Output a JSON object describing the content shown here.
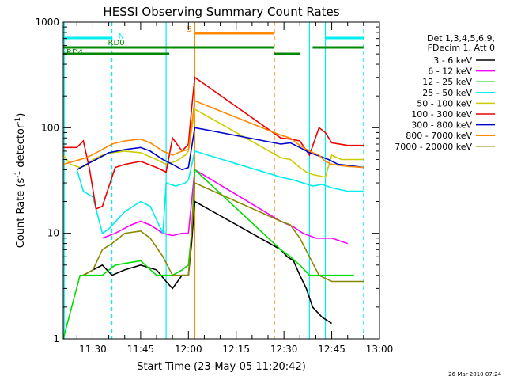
{
  "chart_data": {
    "type": "line",
    "title": "HESSI Observing Summary Count Rates",
    "xlabel": "Start Time (23-May-05 11:20:42)",
    "ylabel": "Count Rate (s^-1 detector^-1)",
    "ylabel_parts": {
      "main": "Count Rate (s",
      "sup1": "-1",
      "mid": " detector",
      "sup2": "-1",
      "end": ")"
    },
    "y_scale": "log",
    "ylim": [
      1,
      1000
    ],
    "xlim": [
      "11:20:42",
      "13:00:00"
    ],
    "x_ticks": [
      "11:30",
      "11:45",
      "12:00",
      "12:15",
      "12:30",
      "12:45",
      "13:00"
    ],
    "y_ticks": [
      "1",
      "10",
      "100",
      "1000"
    ],
    "grid": false,
    "legend_position": "right",
    "legend_header": [
      "Det 1,3,4,5,6,9,",
      "FDecim 1, Att 0"
    ],
    "footer": "26-Mar-2010 07:24",
    "colors": {
      "3 - 6 keV": "#000000",
      "6 - 12 keV": "#ff00ff",
      "12 - 25 keV": "#00dd00",
      "25 - 50 keV": "#00eeee",
      "50 - 100 keV": "#cccc00",
      "100 - 300 keV": "#ee0000",
      "300 - 800 keV": "#0000cc",
      "800 - 7000 keV": "#ff8800",
      "7000 - 20000 keV": "#888800"
    },
    "series": [
      {
        "name": "3 - 6 keV",
        "color": "#000000",
        "points": [
          [
            "11:27",
            4
          ],
          [
            "11:30",
            4.5
          ],
          [
            "11:33",
            5
          ],
          [
            "11:36",
            4
          ],
          [
            "11:40",
            4.5
          ],
          [
            "11:45",
            5
          ],
          [
            "11:50",
            4.5
          ],
          [
            "11:53",
            3.5
          ],
          [
            "11:55",
            3
          ],
          [
            "11:58",
            4
          ],
          [
            "12:00",
            4
          ],
          [
            "12:01",
            8
          ],
          [
            "12:02",
            20
          ],
          [
            "12:29",
            7
          ],
          [
            "12:31",
            6
          ],
          [
            "12:33",
            5.5
          ],
          [
            "12:35",
            4
          ],
          [
            "12:37",
            3
          ],
          [
            "12:39",
            2
          ],
          [
            "12:42",
            1.6
          ],
          [
            "12:45",
            1.4
          ]
        ]
      },
      {
        "name": "6 - 12 keV",
        "color": "#ff00ff",
        "points": [
          [
            "11:33",
            9
          ],
          [
            "11:37",
            10
          ],
          [
            "11:42",
            12
          ],
          [
            "11:45",
            13
          ],
          [
            "11:48",
            12
          ],
          [
            "11:52",
            10
          ],
          [
            "11:55",
            9.5
          ],
          [
            "11:58",
            10
          ],
          [
            "12:00",
            10
          ],
          [
            "12:02",
            40
          ],
          [
            "12:29",
            13
          ],
          [
            "12:33",
            11.5
          ],
          [
            "12:36",
            10
          ],
          [
            "12:40",
            9
          ],
          [
            "12:45",
            9
          ],
          [
            "12:50",
            8
          ]
        ]
      },
      {
        "name": "12 - 25 keV",
        "color": "#00dd00",
        "points": [
          [
            "11:20:42",
            1
          ],
          [
            "11:26",
            4
          ],
          [
            "11:30",
            4
          ],
          [
            "11:33",
            4
          ],
          [
            "11:37",
            5
          ],
          [
            "11:45",
            5.5
          ],
          [
            "11:50",
            4
          ],
          [
            "11:55",
            4
          ],
          [
            "11:58",
            4.5
          ],
          [
            "12:00",
            5
          ],
          [
            "12:01",
            10
          ],
          [
            "12:02",
            40
          ],
          [
            "12:29",
            7
          ],
          [
            "12:32",
            6
          ],
          [
            "12:35",
            5
          ],
          [
            "12:38",
            4
          ],
          [
            "12:42",
            4
          ],
          [
            "12:48",
            4
          ],
          [
            "12:52",
            4
          ]
        ]
      },
      {
        "name": "25 - 50 keV",
        "color": "#00eeee",
        "points": [
          [
            "11:25",
            40
          ],
          [
            "11:27",
            25
          ],
          [
            "11:30",
            22
          ],
          [
            "11:32",
            13
          ],
          [
            "11:33",
            10
          ],
          [
            "11:35",
            11
          ],
          [
            "11:40",
            16
          ],
          [
            "11:45",
            20
          ],
          [
            "11:48",
            18
          ],
          [
            "11:52",
            10
          ],
          [
            "11:53",
            30
          ],
          [
            "11:56",
            28
          ],
          [
            "11:59",
            30
          ],
          [
            "12:00",
            32
          ],
          [
            "12:02",
            60
          ],
          [
            "12:29",
            34
          ],
          [
            "12:33",
            32
          ],
          [
            "12:36",
            30
          ],
          [
            "12:39",
            28
          ],
          [
            "12:42",
            29
          ],
          [
            "12:45",
            27
          ],
          [
            "12:50",
            25
          ],
          [
            "12:55",
            25
          ]
        ]
      },
      {
        "name": "50 - 100 keV",
        "color": "#cccc00",
        "points": [
          [
            "11:20:42",
            55
          ],
          [
            "11:23",
            45
          ],
          [
            "11:26",
            42
          ],
          [
            "11:28",
            44
          ],
          [
            "11:30",
            50
          ],
          [
            "11:33",
            55
          ],
          [
            "11:36",
            58
          ],
          [
            "11:40",
            60
          ],
          [
            "11:45",
            58
          ],
          [
            "11:50",
            50
          ],
          [
            "11:53",
            45
          ],
          [
            "11:56",
            48
          ],
          [
            "11:59",
            55
          ],
          [
            "12:00",
            60
          ],
          [
            "12:02",
            150
          ],
          [
            "12:29",
            52
          ],
          [
            "12:32",
            50
          ],
          [
            "12:35",
            42
          ],
          [
            "12:37",
            38
          ],
          [
            "12:39",
            36
          ],
          [
            "12:41",
            35
          ],
          [
            "12:43",
            34
          ],
          [
            "12:45",
            55
          ],
          [
            "12:48",
            50
          ],
          [
            "12:52",
            50
          ],
          [
            "12:55",
            50
          ]
        ]
      },
      {
        "name": "100 - 300 keV",
        "color": "#ee0000",
        "points": [
          [
            "11:20:42",
            65
          ],
          [
            "11:25",
            65
          ],
          [
            "11:27",
            75
          ],
          [
            "11:29",
            40
          ],
          [
            "11:31",
            17
          ],
          [
            "11:33",
            18
          ],
          [
            "11:37",
            42
          ],
          [
            "11:40",
            45
          ],
          [
            "11:45",
            48
          ],
          [
            "11:50",
            42
          ],
          [
            "11:53",
            38
          ],
          [
            "11:55",
            80
          ],
          [
            "11:58",
            60
          ],
          [
            "12:00",
            70
          ],
          [
            "12:01",
            150
          ],
          [
            "12:02",
            300
          ],
          [
            "12:29",
            80
          ],
          [
            "12:32",
            78
          ],
          [
            "12:35",
            75
          ],
          [
            "12:38",
            55
          ],
          [
            "12:41",
            100
          ],
          [
            "12:43",
            90
          ],
          [
            "12:45",
            72
          ],
          [
            "12:50",
            68
          ],
          [
            "12:55",
            68
          ]
        ]
      },
      {
        "name": "300 - 800 keV",
        "color": "#0000cc",
        "points": [
          [
            "11:25",
            40
          ],
          [
            "11:28",
            45
          ],
          [
            "11:31",
            50
          ],
          [
            "11:35",
            58
          ],
          [
            "11:40",
            62
          ],
          [
            "11:45",
            65
          ],
          [
            "11:48",
            60
          ],
          [
            "11:52",
            50
          ],
          [
            "11:55",
            45
          ],
          [
            "11:58",
            40
          ],
          [
            "12:00",
            42
          ],
          [
            "12:02",
            100
          ],
          [
            "12:29",
            70
          ],
          [
            "12:32",
            72
          ],
          [
            "12:35",
            65
          ],
          [
            "12:38",
            58
          ],
          [
            "12:41",
            54
          ],
          [
            "12:44",
            50
          ],
          [
            "12:47",
            45
          ],
          [
            "12:50",
            44
          ],
          [
            "12:55",
            42
          ]
        ]
      },
      {
        "name": "800 - 7000 keV",
        "color": "#ff8800",
        "points": [
          [
            "11:20:42",
            45
          ],
          [
            "11:24",
            48
          ],
          [
            "11:28",
            52
          ],
          [
            "11:32",
            60
          ],
          [
            "11:36",
            70
          ],
          [
            "11:40",
            75
          ],
          [
            "11:45",
            78
          ],
          [
            "11:48",
            72
          ],
          [
            "11:52",
            60
          ],
          [
            "11:55",
            55
          ],
          [
            "11:58",
            60
          ],
          [
            "12:00",
            62
          ],
          [
            "12:02",
            180
          ],
          [
            "12:29",
            85
          ],
          [
            "12:32",
            80
          ],
          [
            "12:35",
            68
          ],
          [
            "12:38",
            60
          ],
          [
            "12:41",
            55
          ],
          [
            "12:43",
            48
          ],
          [
            "12:45",
            45
          ],
          [
            "12:50",
            43
          ],
          [
            "12:55",
            42
          ]
        ]
      },
      {
        "name": "7000 - 20000 keV",
        "color": "#888800",
        "points": [
          [
            "11:27",
            4
          ],
          [
            "11:30",
            4.5
          ],
          [
            "11:33",
            7
          ],
          [
            "11:36",
            8
          ],
          [
            "11:40",
            10
          ],
          [
            "11:45",
            10.5
          ],
          [
            "11:48",
            9
          ],
          [
            "11:52",
            6
          ],
          [
            "11:55",
            4
          ],
          [
            "11:58",
            4
          ],
          [
            "12:00",
            4
          ],
          [
            "12:01",
            10
          ],
          [
            "12:02",
            30
          ],
          [
            "12:29",
            13
          ],
          [
            "12:32",
            12
          ],
          [
            "12:35",
            9
          ],
          [
            "12:38",
            6
          ],
          [
            "12:41",
            4
          ],
          [
            "12:45",
            3.5
          ],
          [
            "12:50",
            3.5
          ],
          [
            "12:55",
            3.5
          ]
        ]
      }
    ],
    "segments": [
      {
        "label": "N",
        "color": "#00eeee",
        "start": "11:20:42",
        "end": "11:36",
        "level": "top"
      },
      {
        "label": "",
        "color": "#00eeee",
        "start": "12:43",
        "end": "12:55",
        "level": "top"
      },
      {
        "label": "RD0",
        "color": "#008800",
        "start": "11:20:42",
        "end": "11:54",
        "level": "middle"
      },
      {
        "label": "",
        "color": "#008800",
        "start": "11:54",
        "end": "12:27",
        "level": "middle"
      },
      {
        "label": "",
        "color": "#008800",
        "start": "12:39",
        "end": "12:55",
        "level": "middle"
      },
      {
        "label": "RD4",
        "color": "#008800",
        "start": "11:20:42",
        "end": "11:54",
        "level": "lower"
      },
      {
        "label": "",
        "color": "#008800",
        "start": "12:27",
        "end": "12:35",
        "level": "lower"
      },
      {
        "label": "S",
        "color": "#ff8800",
        "start": "12:02",
        "end": "12:27",
        "level": "upper"
      }
    ],
    "vertical_markers": [
      {
        "time": "11:21",
        "color": "#00eeee",
        "style": "solid"
      },
      {
        "time": "11:36",
        "color": "#00eeee",
        "style": "dashed"
      },
      {
        "time": "11:53",
        "color": "#00eeee",
        "style": "solid"
      },
      {
        "time": "12:02",
        "color": "#ff8800",
        "style": "solid"
      },
      {
        "time": "12:27",
        "color": "#ff8800",
        "style": "dashed"
      },
      {
        "time": "12:38",
        "color": "#00eeee",
        "style": "solid"
      },
      {
        "time": "12:43",
        "color": "#00eeee",
        "style": "solid"
      },
      {
        "time": "12:55",
        "color": "#00eeee",
        "style": "dashed"
      }
    ]
  }
}
